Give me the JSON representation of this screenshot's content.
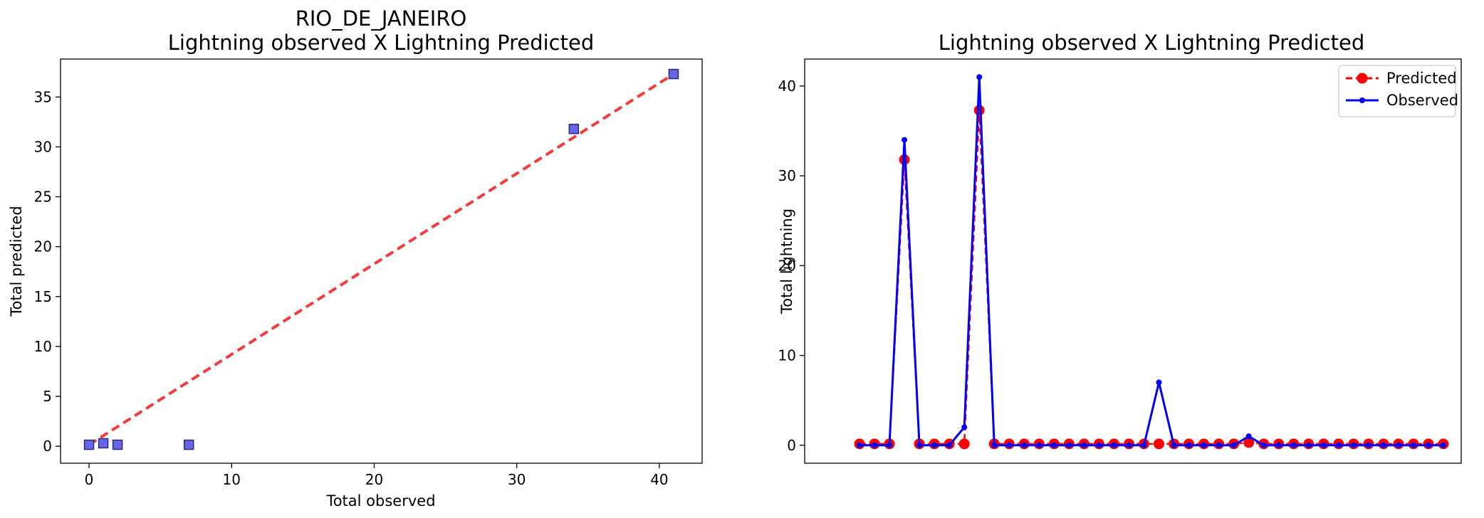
{
  "figure": {
    "left_title_line1": "RIO_DE_JANEIRO",
    "left_title_line2": "Lightning observed X Lightning Predicted",
    "right_title": "Lightning observed X Lightning Predicted"
  },
  "chart_data": [
    {
      "type": "scatter",
      "title": "RIO_DE_JANEIRO\nLightning observed X Lightning Predicted",
      "xlabel": "Total observed",
      "ylabel": "Total predicted",
      "xlim": [
        -2,
        43
      ],
      "ylim": [
        -1.7,
        38.8
      ],
      "xticks": [
        0,
        10,
        20,
        30,
        40
      ],
      "yticks": [
        0,
        5,
        10,
        15,
        20,
        25,
        30,
        35
      ],
      "marker_color": "#6666e6",
      "line_color": "#f53b3b",
      "points": [
        {
          "x": 0,
          "y": 0.15
        },
        {
          "x": 1,
          "y": 0.3
        },
        {
          "x": 2,
          "y": 0.15
        },
        {
          "x": 7,
          "y": 0.15
        },
        {
          "x": 34,
          "y": 31.8
        },
        {
          "x": 41,
          "y": 37.3
        }
      ],
      "fit_line": {
        "x": [
          0,
          41
        ],
        "y": [
          0.15,
          37.3
        ]
      }
    },
    {
      "type": "line",
      "title": "Lightning observed X Lightning Predicted",
      "xlabel": "",
      "ylabel": "Total lightning",
      "ylim": [
        -2,
        43
      ],
      "yticks": [
        0,
        10,
        20,
        30,
        40
      ],
      "legend": {
        "position": "top-right"
      },
      "series": [
        {
          "name": "Predicted",
          "color": "#ff0000",
          "style": "dashed-circle",
          "values": [
            0.15,
            0.15,
            0.15,
            31.8,
            0.15,
            0.15,
            0.15,
            0.15,
            37.3,
            0.15,
            0.15,
            0.15,
            0.15,
            0.15,
            0.15,
            0.15,
            0.15,
            0.15,
            0.15,
            0.15,
            0.15,
            0.15,
            0.15,
            0.15,
            0.15,
            0.15,
            0.3,
            0.15,
            0.15,
            0.15,
            0.15,
            0.15,
            0.15,
            0.15,
            0.15,
            0.15,
            0.15,
            0.15,
            0.15,
            0.15
          ]
        },
        {
          "name": "Observed",
          "color": "#0000ff",
          "style": "solid-dot",
          "values": [
            0,
            0,
            0,
            34,
            0,
            0,
            0,
            2,
            41,
            0,
            0,
            0,
            0,
            0,
            0,
            0,
            0,
            0,
            0,
            0,
            7,
            0,
            0,
            0,
            0,
            0,
            1,
            0,
            0,
            0,
            0,
            0,
            0,
            0,
            0,
            0,
            0,
            0,
            0,
            0
          ]
        }
      ]
    }
  ]
}
